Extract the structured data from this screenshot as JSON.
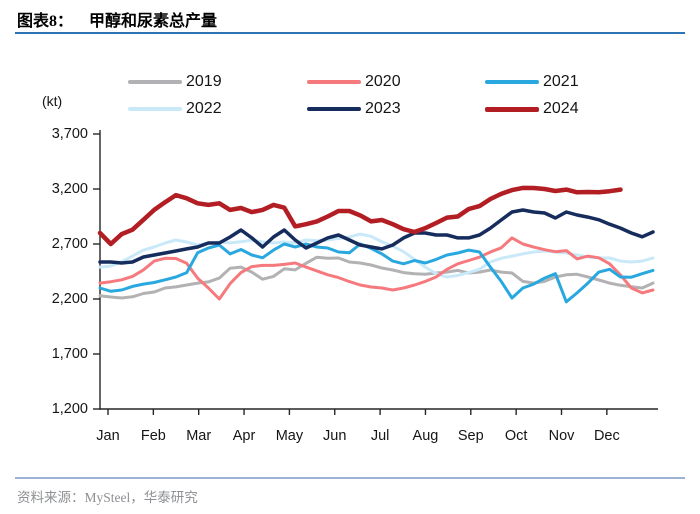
{
  "header": {
    "prefix": "图表8：",
    "title": "甲醇和尿素总产量"
  },
  "footer": {
    "source": "资料来源：MySteel，华泰研究"
  },
  "colors": {
    "title_underline": "#2e74b5",
    "footer_divider": "#9db1d3",
    "axis": "#262626"
  },
  "chart_data": {
    "type": "line",
    "title": "甲醇和尿素总产量",
    "ylabel": "(kt)",
    "xlabel": "",
    "ylim": [
      1200,
      3700
    ],
    "ytick_labels": [
      "3,700",
      "3,200",
      "2,700",
      "2,200",
      "1,700",
      "1,200"
    ],
    "ytick_values": [
      3700,
      3200,
      2700,
      2200,
      1700,
      1200
    ],
    "months": [
      "Jan",
      "Feb",
      "Mar",
      "Apr",
      "May",
      "Jun",
      "Jul",
      "Aug",
      "Sep",
      "Oct",
      "Nov",
      "Dec"
    ],
    "x_resolution": "weekly (52 points Jan-Dec; 2024 truncated mid-Dec)",
    "grid": false,
    "legend_position": "top",
    "legend_order": [
      "2019",
      "2020",
      "2021",
      "2022",
      "2023",
      "2024"
    ],
    "draw_order": [
      "2019",
      "2022",
      "2020",
      "2021",
      "2023",
      "2024"
    ],
    "series": [
      {
        "name": "2019",
        "color": "#b2b2b5",
        "line_width": 3,
        "values": [
          2230,
          2218,
          2209,
          2220,
          2250,
          2264,
          2300,
          2310,
          2327,
          2345,
          2355,
          2390,
          2480,
          2490,
          2445,
          2380,
          2405,
          2475,
          2465,
          2525,
          2580,
          2570,
          2573,
          2536,
          2527,
          2509,
          2482,
          2464,
          2440,
          2430,
          2425,
          2436,
          2445,
          2460,
          2436,
          2445,
          2464,
          2445,
          2436,
          2360,
          2345,
          2360,
          2400,
          2420,
          2425,
          2400,
          2373,
          2345,
          2325,
          2312,
          2300,
          2345
        ]
      },
      {
        "name": "2020",
        "color": "#f5797d",
        "line_width": 3,
        "values": [
          2345,
          2357,
          2375,
          2405,
          2465,
          2545,
          2570,
          2568,
          2525,
          2390,
          2300,
          2200,
          2340,
          2440,
          2495,
          2505,
          2505,
          2515,
          2527,
          2490,
          2455,
          2420,
          2395,
          2358,
          2327,
          2309,
          2300,
          2282,
          2300,
          2327,
          2360,
          2400,
          2470,
          2520,
          2550,
          2580,
          2627,
          2665,
          2755,
          2700,
          2672,
          2648,
          2630,
          2640,
          2565,
          2590,
          2575,
          2520,
          2418,
          2300,
          2255,
          2282
        ]
      },
      {
        "name": "2021",
        "color": "#29a8e0",
        "line_width": 3,
        "values": [
          2300,
          2270,
          2282,
          2315,
          2335,
          2350,
          2375,
          2400,
          2440,
          2620,
          2664,
          2690,
          2610,
          2650,
          2600,
          2575,
          2645,
          2700,
          2673,
          2700,
          2673,
          2664,
          2627,
          2620,
          2700,
          2660,
          2610,
          2545,
          2520,
          2550,
          2527,
          2560,
          2600,
          2618,
          2645,
          2627,
          2490,
          2360,
          2209,
          2300,
          2335,
          2390,
          2430,
          2175,
          2255,
          2345,
          2445,
          2470,
          2400,
          2398,
          2430,
          2460
        ]
      },
      {
        "name": "2022",
        "color": "#c9e9f9",
        "line_width": 3,
        "values": [
          2490,
          2500,
          2540,
          2590,
          2645,
          2673,
          2709,
          2736,
          2718,
          2691,
          2709,
          2718,
          2710,
          2720,
          2736,
          2718,
          2709,
          2718,
          2710,
          2736,
          2730,
          2736,
          2750,
          2764,
          2790,
          2770,
          2720,
          2680,
          2630,
          2560,
          2490,
          2430,
          2400,
          2415,
          2440,
          2470,
          2536,
          2570,
          2590,
          2610,
          2627,
          2636,
          2627,
          2618,
          2600,
          2582,
          2573,
          2573,
          2545,
          2536,
          2545,
          2573
        ]
      },
      {
        "name": "2023",
        "color": "#152c5c",
        "line_width": 3.5,
        "values": [
          2536,
          2536,
          2527,
          2536,
          2582,
          2600,
          2618,
          2636,
          2655,
          2673,
          2709,
          2709,
          2764,
          2827,
          2755,
          2673,
          2764,
          2827,
          2736,
          2664,
          2709,
          2755,
          2782,
          2736,
          2691,
          2673,
          2655,
          2691,
          2755,
          2800,
          2800,
          2782,
          2782,
          2755,
          2755,
          2782,
          2845,
          2918,
          2991,
          3009,
          2991,
          2982,
          2936,
          2991,
          2964,
          2945,
          2920,
          2880,
          2845,
          2800,
          2765,
          2809
        ]
      },
      {
        "name": "2024",
        "color": "#b21e23",
        "line_width": 4.5,
        "values": [
          2800,
          2700,
          2790,
          2830,
          2920,
          3010,
          3080,
          3145,
          3115,
          3070,
          3055,
          3070,
          3010,
          3027,
          2990,
          3010,
          3055,
          3030,
          2860,
          2880,
          2905,
          2950,
          3000,
          3000,
          2960,
          2905,
          2918,
          2880,
          2835,
          2809,
          2845,
          2891,
          2940,
          2950,
          3018,
          3045,
          3109,
          3155,
          3190,
          3210,
          3209,
          3200,
          3182,
          3195,
          3170,
          3173,
          3170,
          3180,
          3195
        ]
      }
    ]
  }
}
